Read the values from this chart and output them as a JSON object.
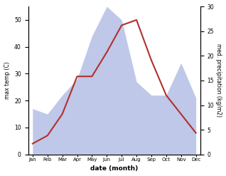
{
  "months": [
    "Jan",
    "Feb",
    "Mar",
    "Apr",
    "May",
    "Jun",
    "Jul",
    "Aug",
    "Sep",
    "Oct",
    "Nov",
    "Dec"
  ],
  "month_indices": [
    0,
    1,
    2,
    3,
    4,
    5,
    6,
    7,
    8,
    9,
    10,
    11
  ],
  "temperature": [
    4,
    7,
    15,
    29,
    29,
    38,
    48,
    50,
    35,
    22,
    15,
    8
  ],
  "precipitation_left_scale": [
    17,
    15,
    22,
    28,
    44,
    55,
    50,
    27,
    22,
    22,
    34,
    21
  ],
  "precip_fill_color": "#bfc8e8",
  "temp_color": "#b03030",
  "temp_ylim": [
    0,
    55
  ],
  "precip_ylim": [
    0,
    30
  ],
  "temp_yticks": [
    0,
    10,
    20,
    30,
    40,
    50
  ],
  "precip_yticks": [
    0,
    5,
    10,
    15,
    20,
    25,
    30
  ],
  "ylabel_left": "max temp (C)",
  "ylabel_right": "med. precipitation (kg/m2)",
  "xlabel": "date (month)",
  "background_color": "#ffffff"
}
